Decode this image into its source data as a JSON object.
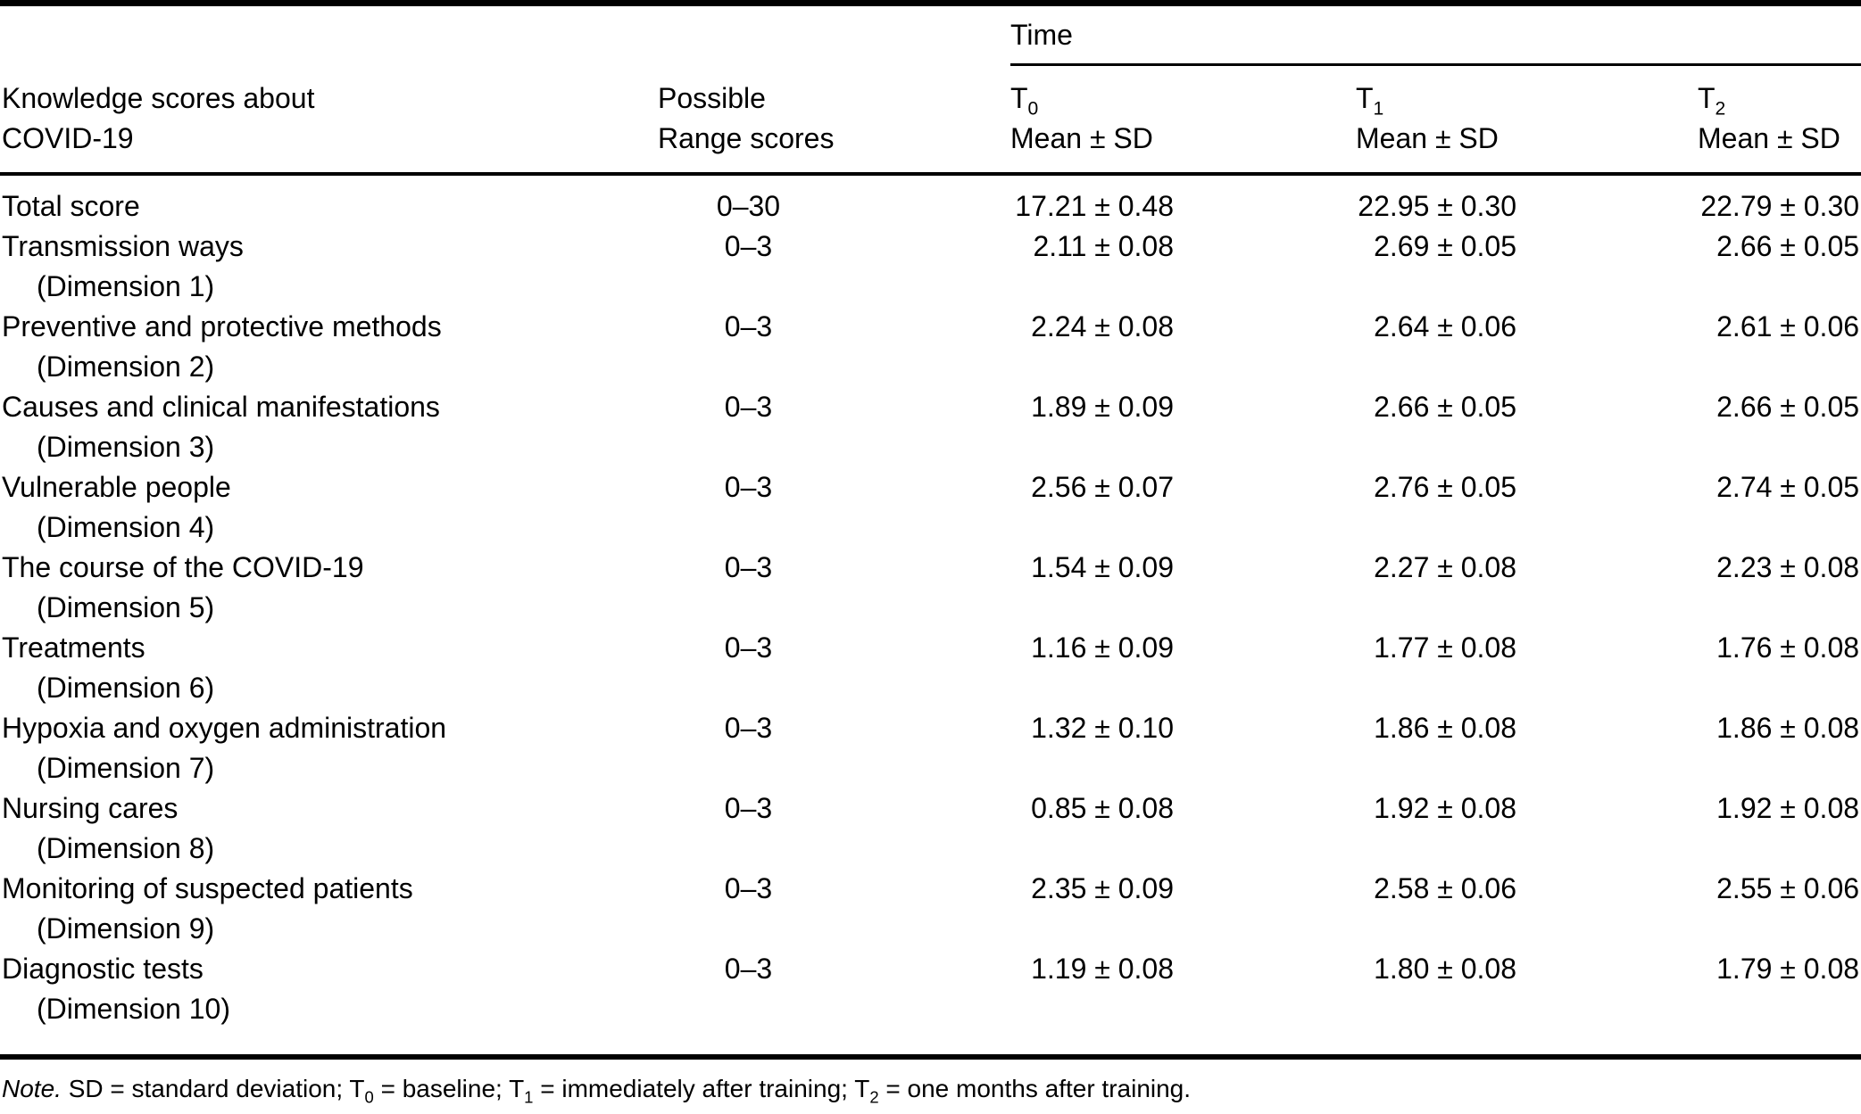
{
  "table": {
    "time_header": "Time",
    "col1_header_line1": "Knowledge scores about",
    "col1_header_line2": "COVID-19",
    "col2_header_line1": "Possible",
    "col2_header_line2": "Range scores",
    "time_columns": [
      {
        "t": "T",
        "sub": "0",
        "mean": "Mean ± SD"
      },
      {
        "t": "T",
        "sub": "1",
        "mean": "Mean ± SD"
      },
      {
        "t": "T",
        "sub": "2",
        "mean": "Mean ± SD"
      }
    ],
    "rows": [
      {
        "label": "Total score",
        "sublabel": "",
        "range": "0–30",
        "t0": "17.21 ± 0.48",
        "t1": "22.95 ± 0.30",
        "t2": "22.79 ± 0.30"
      },
      {
        "label": "Transmission ways",
        "sublabel": "(Dimension 1)",
        "range": "0–3",
        "t0": "2.11 ± 0.08",
        "t1": "2.69 ± 0.05",
        "t2": "2.66 ± 0.05"
      },
      {
        "label": "Preventive and protective methods",
        "sublabel": "(Dimension 2)",
        "range": "0–3",
        "t0": "2.24 ± 0.08",
        "t1": "2.64 ± 0.06",
        "t2": "2.61 ± 0.06"
      },
      {
        "label": "Causes and clinical manifestations",
        "sublabel": "(Dimension 3)",
        "range": "0–3",
        "t0": "1.89 ± 0.09",
        "t1": "2.66 ± 0.05",
        "t2": "2.66 ± 0.05"
      },
      {
        "label": "Vulnerable people",
        "sublabel": "(Dimension 4)",
        "range": "0–3",
        "t0": "2.56 ± 0.07",
        "t1": "2.76 ± 0.05",
        "t2": "2.74 ± 0.05"
      },
      {
        "label": "The course of the COVID-19",
        "sublabel": "(Dimension 5)",
        "range": "0–3",
        "t0": "1.54 ± 0.09",
        "t1": "2.27 ± 0.08",
        "t2": "2.23 ± 0.08"
      },
      {
        "label": "Treatments",
        "sublabel": "(Dimension 6)",
        "range": "0–3",
        "t0": "1.16 ± 0.09",
        "t1": "1.77 ± 0.08",
        "t2": "1.76 ± 0.08"
      },
      {
        "label": "Hypoxia and oxygen administration",
        "sublabel": "(Dimension 7)",
        "range": "0–3",
        "t0": "1.32 ± 0.10",
        "t1": "1.86 ± 0.08",
        "t2": "1.86 ± 0.08"
      },
      {
        "label": "Nursing cares",
        "sublabel": "(Dimension 8)",
        "range": "0–3",
        "t0": "0.85 ± 0.08",
        "t1": "1.92 ± 0.08",
        "t2": "1.92 ± 0.08"
      },
      {
        "label": "Monitoring of suspected patients",
        "sublabel": "(Dimension 9)",
        "range": "0–3",
        "t0": "2.35 ± 0.09",
        "t1": "2.58 ± 0.06",
        "t2": "2.55 ± 0.06"
      },
      {
        "label": "Diagnostic tests",
        "sublabel": "(Dimension 10)",
        "range": "0–3",
        "t0": "1.19 ± 0.08",
        "t1": "1.80 ± 0.08",
        "t2": "1.79 ± 0.08"
      }
    ]
  },
  "note": {
    "label": "Note.",
    "s1": " SD = standard deviation; T",
    "sub0": "0",
    "s2": " = baseline; T",
    "sub1": "1",
    "s3": " = immediately after training; T",
    "sub2": "2",
    "s4": " = one months after training."
  }
}
